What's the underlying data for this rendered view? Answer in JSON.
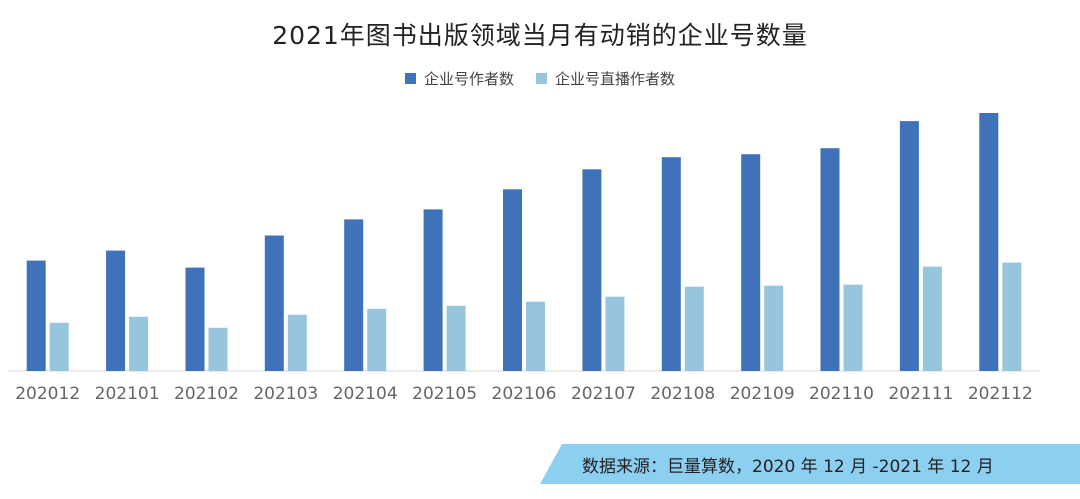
{
  "chart_data": {
    "type": "bar",
    "title": "2021年图书出版领域当月有动销的企业号数量",
    "categories": [
      "202012",
      "202101",
      "202102",
      "202103",
      "202104",
      "202105",
      "202106",
      "202107",
      "202108",
      "202109",
      "202110",
      "202111",
      "202112"
    ],
    "series": [
      {
        "name": "企业号作者数",
        "color": "#3f72b8",
        "values": [
          110,
          120,
          103,
          135,
          151,
          161,
          181,
          201,
          213,
          216,
          222,
          249,
          257
        ]
      },
      {
        "name": "企业号直播作者数",
        "color": "#97c5dd",
        "values": [
          48,
          54,
          43,
          56,
          62,
          65,
          69,
          74,
          84,
          85,
          86,
          104,
          108
        ]
      }
    ],
    "ylim": [
      0,
      270
    ],
    "xlabel": "",
    "ylabel": "",
    "legend": "top-center",
    "grid": false
  },
  "source": {
    "text": "数据来源：巨量算数，2020 年 12 月 -2021 年 12 月",
    "color": "#8dcff0"
  }
}
